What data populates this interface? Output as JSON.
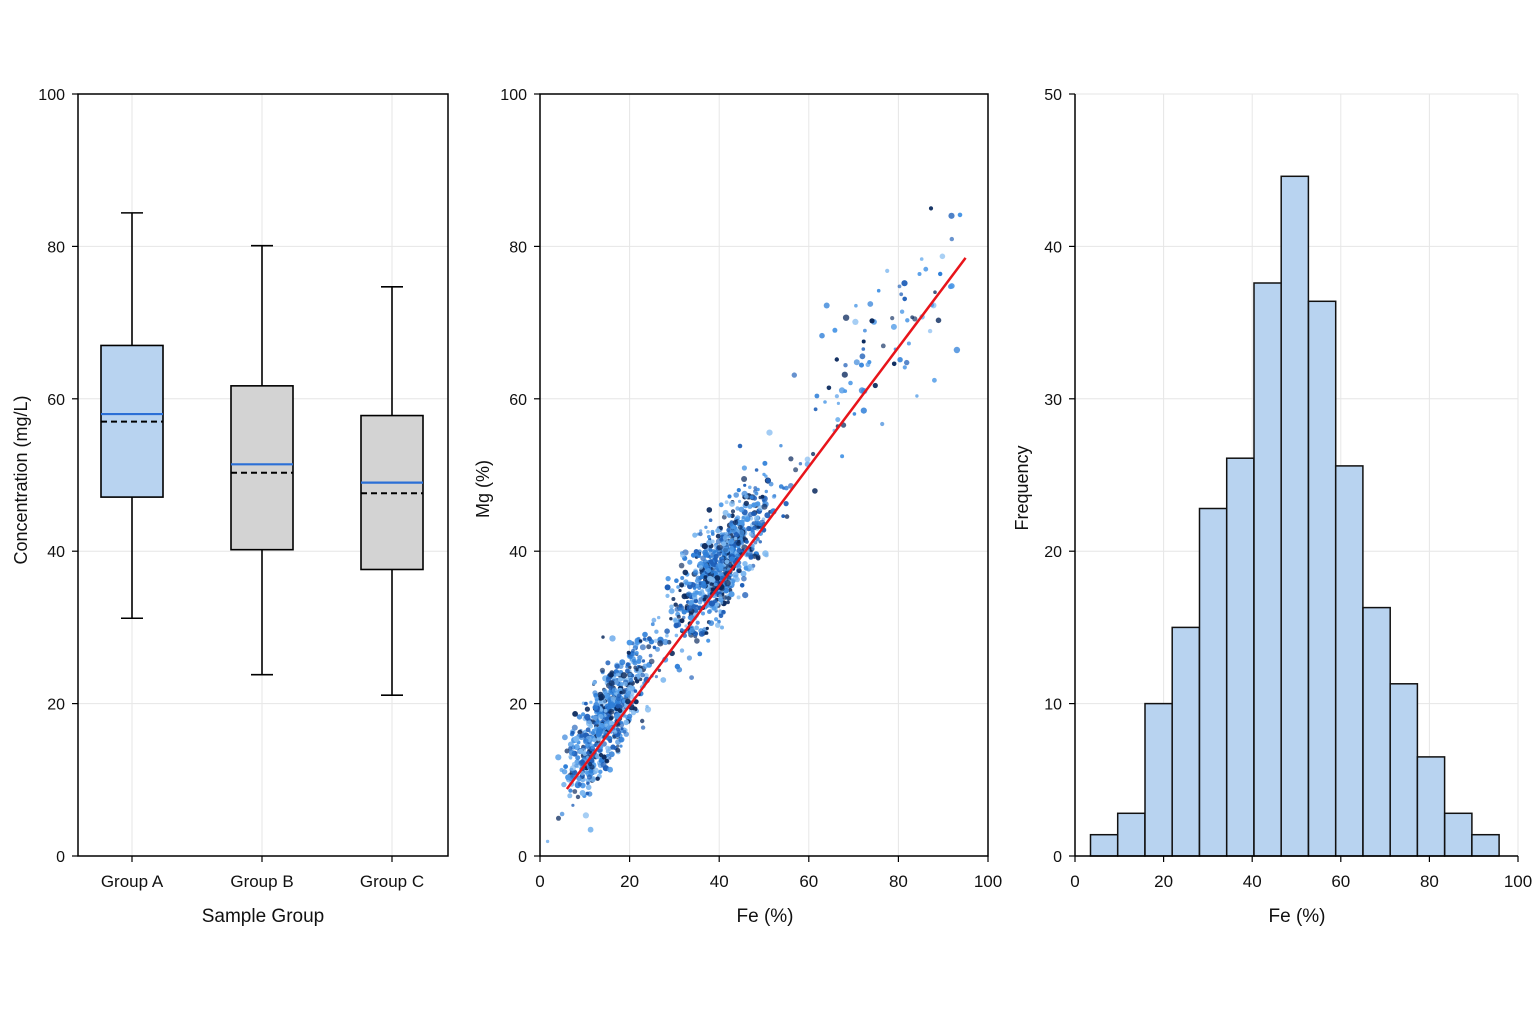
{
  "chart_data": [
    {
      "type": "box",
      "xlabel": "Sample Group",
      "ylabel": "Concentration (mg/L)",
      "ylim": [
        0,
        100
      ],
      "yticks": [
        "0",
        "20",
        "40",
        "60",
        "80",
        "100"
      ],
      "grid": true,
      "categories": [
        "Group A",
        "Group B",
        "Group C"
      ],
      "boxes": [
        {
          "name": "Group A",
          "min": 31.2,
          "q1": 47.1,
          "median": 57.0,
          "mean": 58.0,
          "q3": 67.0,
          "max": 84.4,
          "color": "#b8d3f0"
        },
        {
          "name": "Group B",
          "min": 23.8,
          "q1": 40.2,
          "median": 50.3,
          "mean": 51.4,
          "q3": 61.7,
          "max": 80.1,
          "color": "#d3d3d3"
        },
        {
          "name": "Group C",
          "min": 21.1,
          "q1": 37.6,
          "median": 47.6,
          "mean": 49.0,
          "q3": 57.8,
          "max": 74.7,
          "color": "#d3d3d3"
        }
      ],
      "mean_line_color": "#2b6fd6",
      "median_line_style": "dashed"
    },
    {
      "type": "scatter",
      "xlabel": "Fe (%)",
      "ylabel": "Mg (%)",
      "xlim": [
        0,
        100
      ],
      "ylim": [
        0,
        100
      ],
      "xticks": [
        "0",
        "20",
        "40",
        "60",
        "80",
        "100"
      ],
      "yticks": [
        "0",
        "20",
        "40",
        "60",
        "80",
        "100"
      ],
      "grid": true,
      "clusters": [
        {
          "center_x": 15,
          "center_y": 18,
          "spread_x": 4.5,
          "spread_y": 5.5,
          "count": 650
        },
        {
          "center_x": 40,
          "center_y": 38,
          "spread_x": 5.5,
          "spread_y": 5.5,
          "count": 750
        },
        {
          "center_x": 75,
          "center_y": 67,
          "spread_x": 10,
          "spread_y": 9,
          "count": 90
        }
      ],
      "trendline": {
        "x": [
          6,
          95
        ],
        "y": [
          8.8,
          78.5
        ],
        "color": "#e8141a"
      },
      "point_colors": [
        "#0b2a5e",
        "#1f5fb8",
        "#2f7fd8",
        "#4a97e6",
        "#7cb7ef"
      ]
    },
    {
      "type": "histogram",
      "xlabel": "Fe (%)",
      "ylabel": "Frequency",
      "xlim": [
        0,
        100
      ],
      "ylim": [
        0,
        50
      ],
      "xticks": [
        "0",
        "20",
        "40",
        "60",
        "80",
        "100"
      ],
      "yticks": [
        "0",
        "10",
        "20",
        "30",
        "40",
        "50"
      ],
      "grid": true,
      "bin_start": 3.5,
      "bin_width": 6.15,
      "values": [
        1.4,
        2.8,
        10.0,
        15.0,
        22.8,
        26.1,
        37.6,
        44.6,
        36.4,
        25.6,
        16.3,
        11.3,
        6.5,
        2.8,
        1.4
      ],
      "color": "#b8d3f0"
    }
  ]
}
